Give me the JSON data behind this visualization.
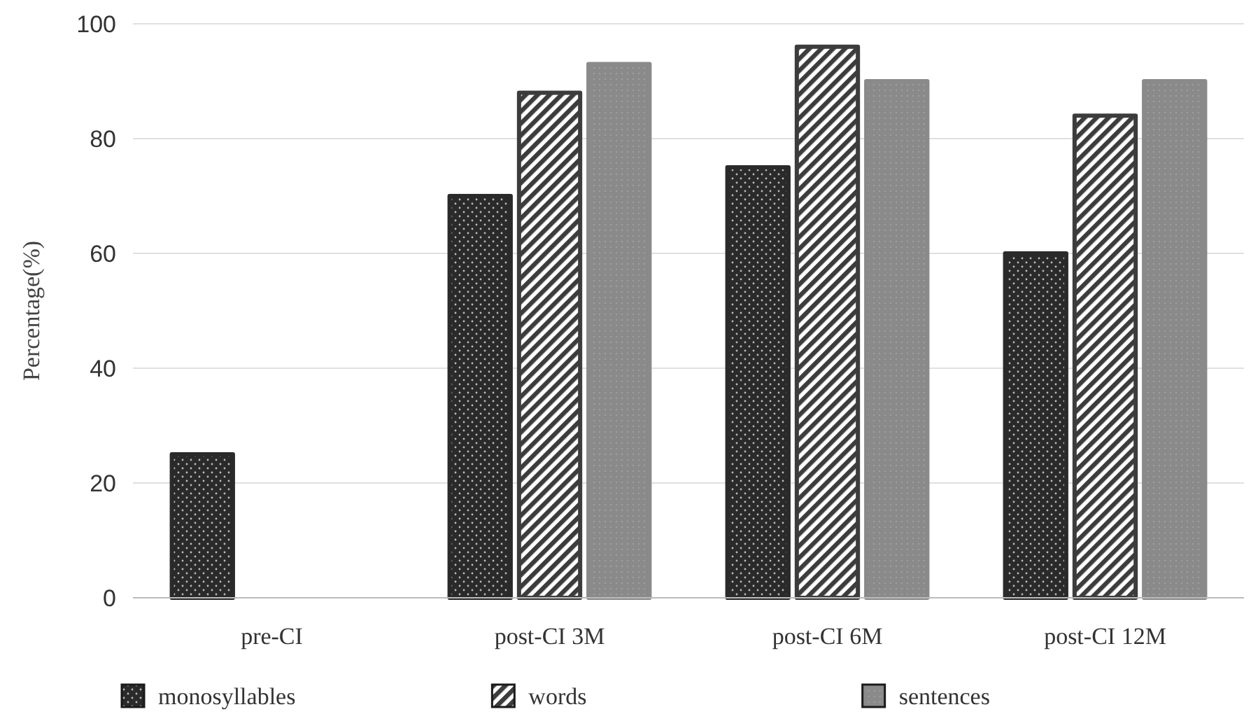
{
  "chart_data": {
    "type": "bar",
    "ylabel": "Percentage(%)",
    "categories": [
      "pre-CI",
      "post-CI 3M",
      "post-CI 6M",
      "post-CI 12M"
    ],
    "series": [
      {
        "name": "monosyllables",
        "color": "#2a2a2a",
        "values": [
          25,
          70,
          75,
          60
        ]
      },
      {
        "name": "words",
        "color": "#3c3c3c",
        "values": [
          null,
          88,
          96,
          84
        ]
      },
      {
        "name": "sentences",
        "color": "#8a8a8a",
        "values": [
          null,
          93,
          90,
          90
        ]
      }
    ],
    "ylim": [
      0,
      100
    ],
    "yticks": [
      0,
      20,
      40,
      60,
      80,
      100
    ],
    "grid": "y",
    "legend": "bottom"
  }
}
